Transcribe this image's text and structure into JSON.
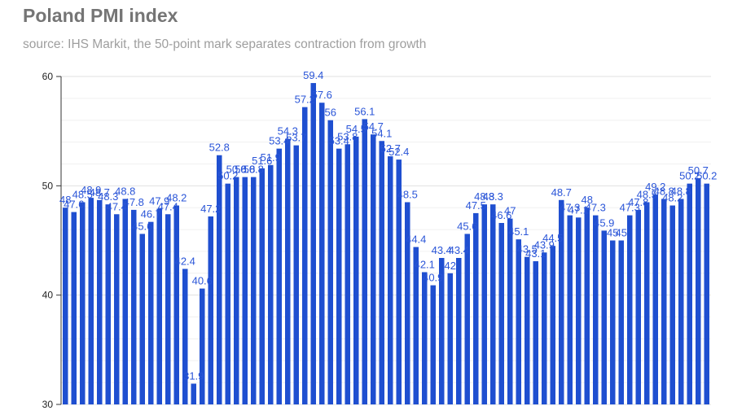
{
  "title": "Poland PMI index",
  "subtitle": "source: IHS Markit, the 50-point mark separates contraction from growth",
  "colors": {
    "bar": "#1f4fd0",
    "label": "#2a55d8",
    "grid": "#e0e0e0",
    "axis": "#333333"
  },
  "chart_data": {
    "type": "bar",
    "title": "Poland PMI index",
    "subtitle": "source: IHS Markit, the 50-point mark separates contraction from growth",
    "xlabel": "",
    "ylabel": "",
    "ylim": [
      30,
      60
    ],
    "yticks": [
      30,
      40,
      50,
      60
    ],
    "grid": true,
    "legend": "none",
    "values": [
      48,
      47.6,
      48.5,
      48.9,
      48.7,
      48.3,
      47.4,
      48.8,
      47.8,
      45.6,
      46.7,
      47.9,
      47.4,
      48.2,
      42.4,
      31.9,
      40.6,
      47.2,
      52.8,
      50.2,
      50.8,
      50.8,
      50.8,
      51.6,
      51.9,
      53.4,
      54.3,
      53.7,
      57.2,
      59.4,
      57.6,
      56,
      53.4,
      53.8,
      54.5,
      56.1,
      54.7,
      54.1,
      52.7,
      52.4,
      48.5,
      44.4,
      42.1,
      40.9,
      43.4,
      42,
      43.4,
      45.6,
      47.5,
      48.3,
      48.3,
      46.6,
      47,
      45.1,
      43.5,
      43.1,
      43.9,
      44.5,
      48.7,
      47.3,
      47.1,
      48,
      47.3,
      45.9,
      45,
      45,
      47.3,
      47.8,
      48.5,
      49.2,
      48.8,
      48.2,
      48.8,
      50.2,
      50.7,
      50.2
    ]
  }
}
